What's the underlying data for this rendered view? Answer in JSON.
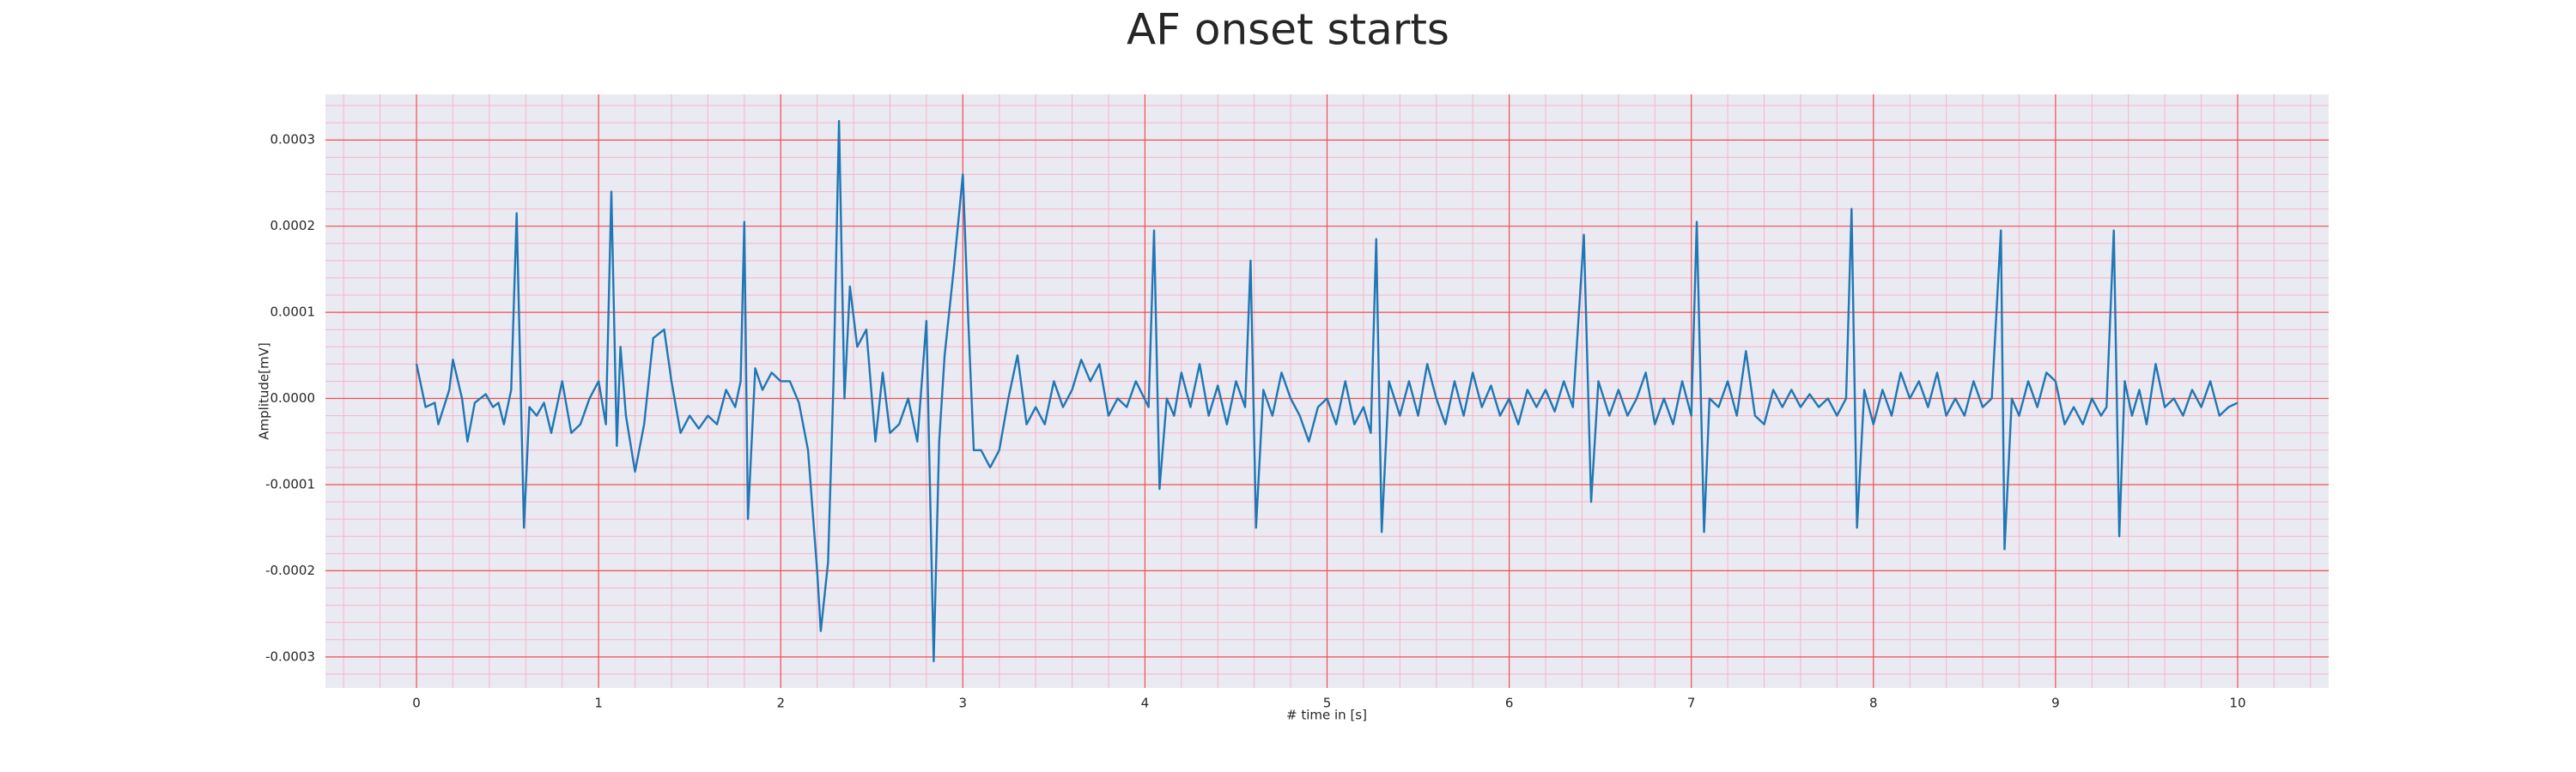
{
  "chart_data": {
    "type": "line",
    "title": "AF onset starts",
    "xlabel": "# time in [s]",
    "ylabel": "Amplitude[mV]",
    "color": "#1f77b4",
    "grid": true,
    "minor_grid": {
      "xstep": 0.2,
      "ystep": 2e-05
    },
    "xlim": [
      -0.5,
      10.5
    ],
    "ylim": [
      -0.000336,
      0.000353
    ],
    "xticks": [
      0,
      1,
      2,
      3,
      4,
      5,
      6,
      7,
      8,
      9,
      10
    ],
    "yticks": [
      -0.0003,
      -0.0002,
      -0.0001,
      {
        "value": 0,
        "label": "0.0000"
      },
      0.0001,
      0.0002,
      0.0003
    ],
    "x": [
      0,
      0.05,
      0.1,
      0.12,
      0.18,
      0.2,
      0.25,
      0.28,
      0.32,
      0.38,
      0.42,
      0.45,
      0.48,
      0.52,
      0.55,
      0.59,
      0.62,
      0.66,
      0.7,
      0.74,
      0.8,
      0.85,
      0.9,
      0.95,
      1.0,
      1.04,
      1.07,
      1.1,
      1.12,
      1.15,
      1.2,
      1.25,
      1.3,
      1.36,
      1.4,
      1.45,
      1.5,
      1.55,
      1.6,
      1.65,
      1.7,
      1.75,
      1.78,
      1.8,
      1.82,
      1.86,
      1.9,
      1.95,
      2.0,
      2.05,
      2.1,
      2.15,
      2.2,
      2.22,
      2.26,
      2.29,
      2.32,
      2.35,
      2.38,
      2.42,
      2.47,
      2.52,
      2.56,
      2.6,
      2.65,
      2.7,
      2.75,
      2.8,
      2.84,
      2.87,
      2.9,
      2.95,
      3.0,
      3.03,
      3.06,
      3.1,
      3.15,
      3.2,
      3.25,
      3.3,
      3.35,
      3.4,
      3.45,
      3.5,
      3.55,
      3.6,
      3.65,
      3.7,
      3.75,
      3.8,
      3.85,
      3.9,
      3.95,
      4.02,
      4.05,
      4.08,
      4.12,
      4.16,
      4.2,
      4.25,
      4.3,
      4.35,
      4.4,
      4.45,
      4.5,
      4.55,
      4.58,
      4.61,
      4.65,
      4.7,
      4.75,
      4.8,
      4.85,
      4.9,
      4.95,
      5.0,
      5.05,
      5.1,
      5.15,
      5.2,
      5.24,
      5.27,
      5.3,
      5.34,
      5.4,
      5.45,
      5.5,
      5.55,
      5.6,
      5.65,
      5.7,
      5.75,
      5.8,
      5.85,
      5.9,
      5.95,
      6.0,
      6.05,
      6.1,
      6.15,
      6.2,
      6.25,
      6.3,
      6.35,
      6.41,
      6.45,
      6.49,
      6.55,
      6.6,
      6.65,
      6.7,
      6.75,
      6.8,
      6.85,
      6.9,
      6.95,
      7.0,
      7.03,
      7.07,
      7.1,
      7.15,
      7.2,
      7.25,
      7.3,
      7.35,
      7.4,
      7.45,
      7.5,
      7.55,
      7.6,
      7.65,
      7.7,
      7.75,
      7.8,
      7.85,
      7.88,
      7.91,
      7.95,
      8.0,
      8.05,
      8.1,
      8.15,
      8.2,
      8.25,
      8.3,
      8.35,
      8.4,
      8.45,
      8.5,
      8.55,
      8.6,
      8.65,
      8.7,
      8.72,
      8.76,
      8.8,
      8.85,
      8.9,
      8.95,
      9.0,
      9.05,
      9.1,
      9.15,
      9.2,
      9.25,
      9.28,
      9.32,
      9.35,
      9.38,
      9.42,
      9.46,
      9.5,
      9.55,
      9.6,
      9.65,
      9.7,
      9.75,
      9.8,
      9.85,
      9.9,
      9.95,
      10.0
    ],
    "values": [
      4e-05,
      -1e-05,
      -5e-06,
      -3e-05,
      1e-05,
      4.5e-05,
      0.0,
      -5e-05,
      -5e-06,
      5e-06,
      -1e-05,
      -5e-06,
      -3e-05,
      1e-05,
      0.000215,
      -0.00015,
      -1e-05,
      -2e-05,
      -5e-06,
      -4e-05,
      2e-05,
      -4e-05,
      -3e-05,
      0.0,
      2e-05,
      -3e-05,
      0.00024,
      -5.5e-05,
      6e-05,
      -2e-05,
      -8.5e-05,
      -3e-05,
      7e-05,
      8e-05,
      2e-05,
      -4e-05,
      -2e-05,
      -3.5e-05,
      -2e-05,
      -3e-05,
      1e-05,
      -1e-05,
      2e-05,
      0.000205,
      -0.00014,
      3.5e-05,
      1e-05,
      3e-05,
      2e-05,
      2e-05,
      -5e-06,
      -6e-05,
      -0.0002,
      -0.00027,
      -0.00019,
      2e-05,
      0.000322,
      0.0,
      0.00013,
      6e-05,
      8e-05,
      -5e-05,
      3e-05,
      -4e-05,
      -3e-05,
      0.0,
      -5e-05,
      9e-05,
      -0.000305,
      -5e-05,
      5e-05,
      0.00015,
      0.00026,
      9e-05,
      -6e-05,
      -6e-05,
      -8e-05,
      -6e-05,
      0.0,
      5e-05,
      -3e-05,
      -1e-05,
      -3e-05,
      2e-05,
      -1e-05,
      1e-05,
      4.5e-05,
      2e-05,
      4e-05,
      -2e-05,
      0.0,
      -1e-05,
      2e-05,
      -1e-05,
      0.000195,
      -0.000105,
      0.0,
      -2e-05,
      3e-05,
      -1e-05,
      4e-05,
      -2e-05,
      1.5e-05,
      -3e-05,
      2e-05,
      -1e-05,
      0.00016,
      -0.00015,
      1e-05,
      -2e-05,
      3e-05,
      0.0,
      -2e-05,
      -5e-05,
      -1e-05,
      0.0,
      -3e-05,
      2e-05,
      -3e-05,
      -1e-05,
      -4e-05,
      0.000185,
      -0.000155,
      2e-05,
      -2e-05,
      2e-05,
      -2e-05,
      4e-05,
      0.0,
      -3e-05,
      2e-05,
      -2e-05,
      3e-05,
      -1e-05,
      1.5e-05,
      -2e-05,
      0.0,
      -3e-05,
      1e-05,
      -1e-05,
      1e-05,
      -1.5e-05,
      2e-05,
      -1e-05,
      0.00019,
      -0.00012,
      2e-05,
      -2e-05,
      1e-05,
      -2e-05,
      0.0,
      3e-05,
      -3e-05,
      0.0,
      -3e-05,
      2e-05,
      -2e-05,
      0.000205,
      -0.000155,
      0.0,
      -1e-05,
      2e-05,
      -2e-05,
      5.5e-05,
      -2e-05,
      -3e-05,
      1e-05,
      -1e-05,
      1e-05,
      -1e-05,
      5e-06,
      -1e-05,
      0.0,
      -2e-05,
      0.0,
      0.00022,
      -0.00015,
      1e-05,
      -3e-05,
      1e-05,
      -2e-05,
      3e-05,
      0.0,
      2e-05,
      -1e-05,
      3e-05,
      -2e-05,
      0.0,
      -2e-05,
      2e-05,
      -1e-05,
      0.0,
      0.000195,
      -0.000175,
      0.0,
      -2e-05,
      2e-05,
      -1e-05,
      3e-05,
      2e-05,
      -3e-05,
      -1e-05,
      -3e-05,
      0.0,
      -2e-05,
      -1e-05,
      0.000195,
      -0.00016,
      2e-05,
      -2e-05,
      1e-05,
      -3e-05,
      4e-05,
      -1e-05,
      0.0,
      -2e-05,
      1e-05,
      -1e-05,
      2e-05,
      -2e-05,
      -1e-05,
      -5e-06
    ]
  }
}
